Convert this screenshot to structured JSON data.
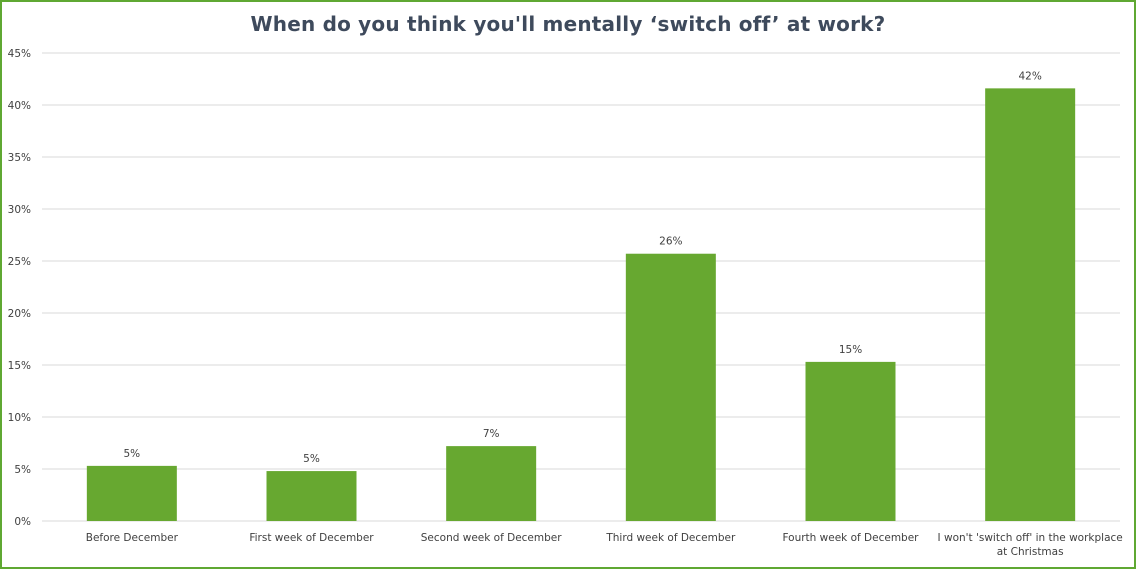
{
  "chart_data": {
    "type": "bar",
    "title": "When do you think you'll mentally ‘switch off’ at work?",
    "xlabel": "",
    "ylabel": "",
    "categories": [
      [
        "Before December"
      ],
      [
        "First week of December"
      ],
      [
        "Second week of December"
      ],
      [
        "Third week of December"
      ],
      [
        "Fourth week of December"
      ],
      [
        "I won't 'switch off' in the workplace",
        "at Christmas"
      ]
    ],
    "values": [
      5.3,
      4.8,
      7.2,
      25.7,
      15.3,
      41.6
    ],
    "data_labels": [
      "5%",
      "5%",
      "7%",
      "26%",
      "15%",
      "42%"
    ],
    "ylim": [
      0,
      45
    ],
    "yticks": [
      0,
      5,
      10,
      15,
      20,
      25,
      30,
      35,
      40,
      45
    ],
    "ytick_labels": [
      "0%",
      "5%",
      "10%",
      "15%",
      "20%",
      "25%",
      "30%",
      "35%",
      "40%",
      "45%"
    ],
    "grid": true,
    "legend": "none",
    "colors": {
      "bar": "#67a830",
      "border": "#5fa832",
      "grid": "#d9d9d9",
      "title": "#3e4a5c",
      "text": "#404040"
    }
  }
}
